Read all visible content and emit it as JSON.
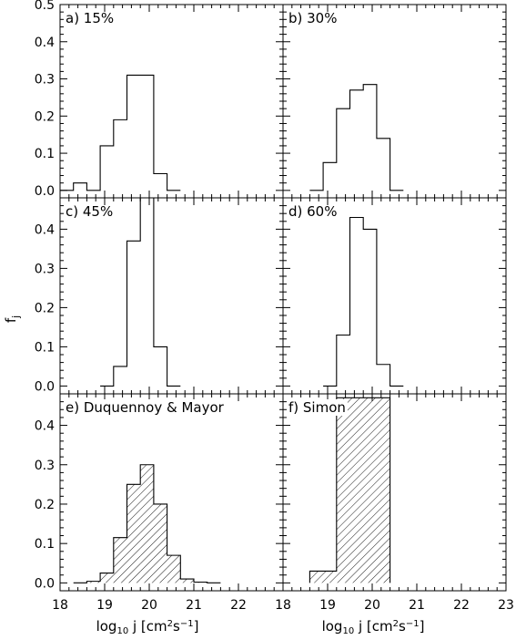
{
  "figure": {
    "ylabel_main": "f",
    "ylabel_sub": "j",
    "xlabel_left": {
      "pre": "log",
      "sub": "10",
      "mid": " j [cm",
      "sup1": "2",
      "mid2": "s",
      "sup2": "−1",
      "post": "]"
    },
    "xlabel_right": {
      "pre": "log",
      "sub": "10",
      "mid": " j [cm",
      "sup1": "2",
      "mid2": "s",
      "sup2": "−1",
      "post": "]"
    }
  },
  "chart_data": [
    {
      "type": "bar",
      "panel": "a",
      "title": "a) 15%",
      "hatched": false,
      "bin_edges": [
        18.0,
        18.3,
        18.6,
        18.9,
        19.2,
        19.5,
        19.8,
        20.1,
        20.4,
        20.7
      ],
      "values": [
        0.0,
        0.02,
        0.0,
        0.12,
        0.19,
        0.31,
        0.31,
        0.045,
        0.0
      ],
      "xlim": [
        18,
        23
      ],
      "ylim": [
        -0.02,
        0.5
      ],
      "yticks": [
        "0.0",
        "0.1",
        "0.2",
        "0.3",
        "0.4",
        "0.5"
      ],
      "xticks": []
    },
    {
      "type": "bar",
      "panel": "b",
      "title": "b) 30%",
      "hatched": false,
      "bin_edges": [
        18.6,
        18.9,
        19.2,
        19.5,
        19.8,
        20.1,
        20.4,
        20.7
      ],
      "values": [
        0.0,
        0.075,
        0.22,
        0.27,
        0.285,
        0.14,
        0.0
      ],
      "xlim": [
        18,
        23
      ],
      "ylim": [
        -0.02,
        0.5
      ],
      "yticks": [],
      "xticks": []
    },
    {
      "type": "bar",
      "panel": "c",
      "title": "c) 45%",
      "hatched": false,
      "bin_edges": [
        18.9,
        19.2,
        19.5,
        19.8,
        20.1,
        20.4,
        20.7
      ],
      "values": [
        0.0,
        0.05,
        0.37,
        0.48,
        0.1,
        0.0
      ],
      "xlim": [
        18,
        23
      ],
      "ylim": [
        -0.02,
        0.48
      ],
      "yticks": [
        "0.0",
        "0.1",
        "0.2",
        "0.3",
        "0.4"
      ],
      "xticks": []
    },
    {
      "type": "bar",
      "panel": "d",
      "title": "d) 60%",
      "hatched": false,
      "bin_edges": [
        18.9,
        19.2,
        19.5,
        19.8,
        20.1,
        20.4,
        20.7
      ],
      "values": [
        0.0,
        0.13,
        0.43,
        0.4,
        0.055,
        0.0
      ],
      "xlim": [
        18,
        23
      ],
      "ylim": [
        -0.02,
        0.48
      ],
      "yticks": [],
      "xticks": []
    },
    {
      "type": "bar",
      "panel": "e",
      "title": "e) Duquennoy & Mayor",
      "hatched": true,
      "bin_edges": [
        18.3,
        18.6,
        18.9,
        19.2,
        19.5,
        19.8,
        20.1,
        20.4,
        20.7,
        21.0,
        21.3,
        21.6
      ],
      "values": [
        0.0,
        0.004,
        0.025,
        0.115,
        0.25,
        0.3,
        0.2,
        0.07,
        0.01,
        0.002,
        0.0
      ],
      "xlim": [
        18,
        23
      ],
      "ylim": [
        -0.02,
        0.48
      ],
      "yticks": [
        "0.0",
        "0.1",
        "0.2",
        "0.3",
        "0.4"
      ],
      "xticks": [
        "18",
        "19",
        "20",
        "21",
        "22"
      ]
    },
    {
      "type": "bar",
      "panel": "f",
      "title": "f) Simon",
      "hatched": true,
      "bin_edges": [
        18.6,
        19.2,
        20.4
      ],
      "values": [
        0.03,
        0.47
      ],
      "xlim": [
        18,
        23
      ],
      "ylim": [
        -0.02,
        0.48
      ],
      "yticks": [],
      "xticks": [
        "18",
        "19",
        "20",
        "21",
        "22",
        "23"
      ]
    }
  ]
}
